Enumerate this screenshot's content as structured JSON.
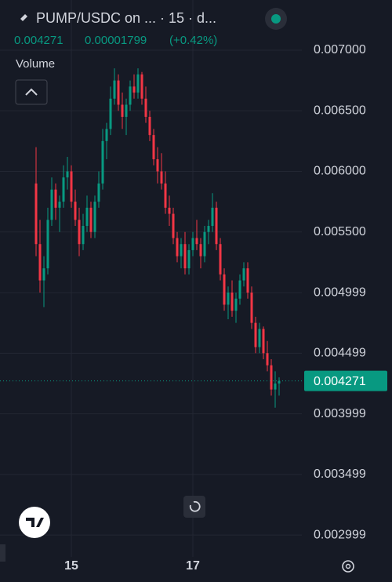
{
  "header": {
    "symbol": "PUMP/USDC on ... · 15 · d...",
    "last": "0.004271",
    "change": "0.00001799",
    "change_pct": "(+0.42%)",
    "volume_label": "Volume"
  },
  "chart_data": {
    "type": "candlestick",
    "up_color": "#089981",
    "down_color": "#f23645",
    "ylim": [
      0.002819,
      0.007414
    ],
    "yticks": [
      {
        "value": 0.007,
        "label": "0.007000"
      },
      {
        "value": 0.0065,
        "label": "0.006500"
      },
      {
        "value": 0.006,
        "label": "0.006000"
      },
      {
        "value": 0.0055,
        "label": "0.005500"
      },
      0.004999,
      0.004499,
      0.003999,
      0.003499,
      0.002999
    ],
    "grid": true,
    "last_price": 0.004271,
    "categories": [
      null,
      null,
      null,
      null,
      null,
      null,
      null,
      null,
      null,
      "15",
      null,
      null,
      null,
      null,
      null,
      null,
      null,
      null,
      null,
      null,
      null,
      null,
      null,
      null,
      null,
      null,
      null,
      null,
      null,
      null,
      null,
      null,
      null,
      null,
      null,
      null,
      null,
      null,
      null,
      null,
      "17",
      null,
      null,
      null,
      null,
      null,
      null,
      null,
      null,
      null,
      null,
      null,
      null,
      null,
      null,
      null,
      null,
      null,
      null,
      null,
      null,
      null,
      null
    ],
    "open": [
      0.0059,
      0.0054,
      0.0051,
      0.0052,
      0.0056,
      0.00585,
      0.0057,
      0.00575,
      0.00595,
      0.006,
      0.00575,
      0.0056,
      0.0054,
      0.00555,
      0.0057,
      0.0055,
      0.00575,
      0.0059,
      0.00625,
      0.00635,
      0.0066,
      0.00675,
      0.00655,
      0.00645,
      0.00655,
      0.0067,
      0.00665,
      0.0068,
      0.0066,
      0.00645,
      0.0063,
      0.0061,
      0.006,
      0.0059,
      0.0057,
      0.00565,
      0.00545,
      0.0053,
      0.0054,
      0.0052,
      0.00535,
      0.00545,
      0.0054,
      0.0053,
      0.0055,
      0.00555,
      0.0057,
      0.0054,
      0.00515,
      0.0049,
      0.005,
      0.00485,
      0.00495,
      0.0051,
      0.0052,
      0.005,
      0.00475,
      0.00455,
      0.0047,
      0.0045,
      0.0044,
      0.0042,
      0.00425
    ],
    "high": [
      0.0062,
      0.0056,
      0.0053,
      0.0057,
      0.00595,
      0.0059,
      0.0058,
      0.00605,
      0.00612,
      0.00605,
      0.00585,
      0.0057,
      0.00565,
      0.0058,
      0.00575,
      0.0058,
      0.006,
      0.00635,
      0.0064,
      0.0067,
      0.00685,
      0.0068,
      0.00665,
      0.0066,
      0.00675,
      0.0068,
      0.00685,
      0.00682,
      0.0067,
      0.0065,
      0.00635,
      0.0062,
      0.00615,
      0.006,
      0.0058,
      0.0057,
      0.0055,
      0.00545,
      0.0055,
      0.0054,
      0.0055,
      0.0056,
      0.00545,
      0.00555,
      0.0056,
      0.00582,
      0.00575,
      0.00545,
      0.0052,
      0.00505,
      0.0051,
      0.005,
      0.00515,
      0.00525,
      0.00525,
      0.00505,
      0.0048,
      0.00475,
      0.00472,
      0.0046,
      0.00445,
      0.00435,
      0.0043
    ],
    "low": [
      0.0053,
      0.005,
      0.00488,
      0.00515,
      0.00555,
      0.0056,
      0.0055,
      0.0057,
      0.00585,
      0.0057,
      0.00555,
      0.0053,
      0.00535,
      0.0055,
      0.00545,
      0.00545,
      0.0057,
      0.00585,
      0.0061,
      0.0063,
      0.00655,
      0.0065,
      0.00635,
      0.0063,
      0.0065,
      0.0066,
      0.0066,
      0.00655,
      0.0064,
      0.00625,
      0.00605,
      0.0059,
      0.00585,
      0.00565,
      0.00555,
      0.0054,
      0.00525,
      0.0052,
      0.00515,
      0.00515,
      0.0053,
      0.00535,
      0.0052,
      0.00525,
      0.0054,
      0.0055,
      0.00535,
      0.0051,
      0.00485,
      0.00478,
      0.0048,
      0.00475,
      0.0049,
      0.00505,
      0.00495,
      0.0047,
      0.0045,
      0.0045,
      0.00445,
      0.00435,
      0.00415,
      0.00405,
      0.00415
    ],
    "close": [
      0.0054,
      0.0051,
      0.0052,
      0.0056,
      0.00585,
      0.0057,
      0.00575,
      0.00595,
      0.006,
      0.00575,
      0.0056,
      0.0054,
      0.00555,
      0.0057,
      0.0055,
      0.00575,
      0.0059,
      0.00625,
      0.00635,
      0.0066,
      0.00675,
      0.00655,
      0.00645,
      0.00655,
      0.0067,
      0.00665,
      0.0068,
      0.0066,
      0.00645,
      0.0063,
      0.0061,
      0.006,
      0.0059,
      0.0057,
      0.00565,
      0.00545,
      0.0053,
      0.0054,
      0.0052,
      0.00535,
      0.00545,
      0.0054,
      0.0053,
      0.0055,
      0.00555,
      0.0057,
      0.0054,
      0.00515,
      0.0049,
      0.005,
      0.00485,
      0.00495,
      0.0051,
      0.0052,
      0.005,
      0.00475,
      0.00455,
      0.0047,
      0.0045,
      0.0044,
      0.0042,
      0.00425,
      0.004271
    ]
  }
}
